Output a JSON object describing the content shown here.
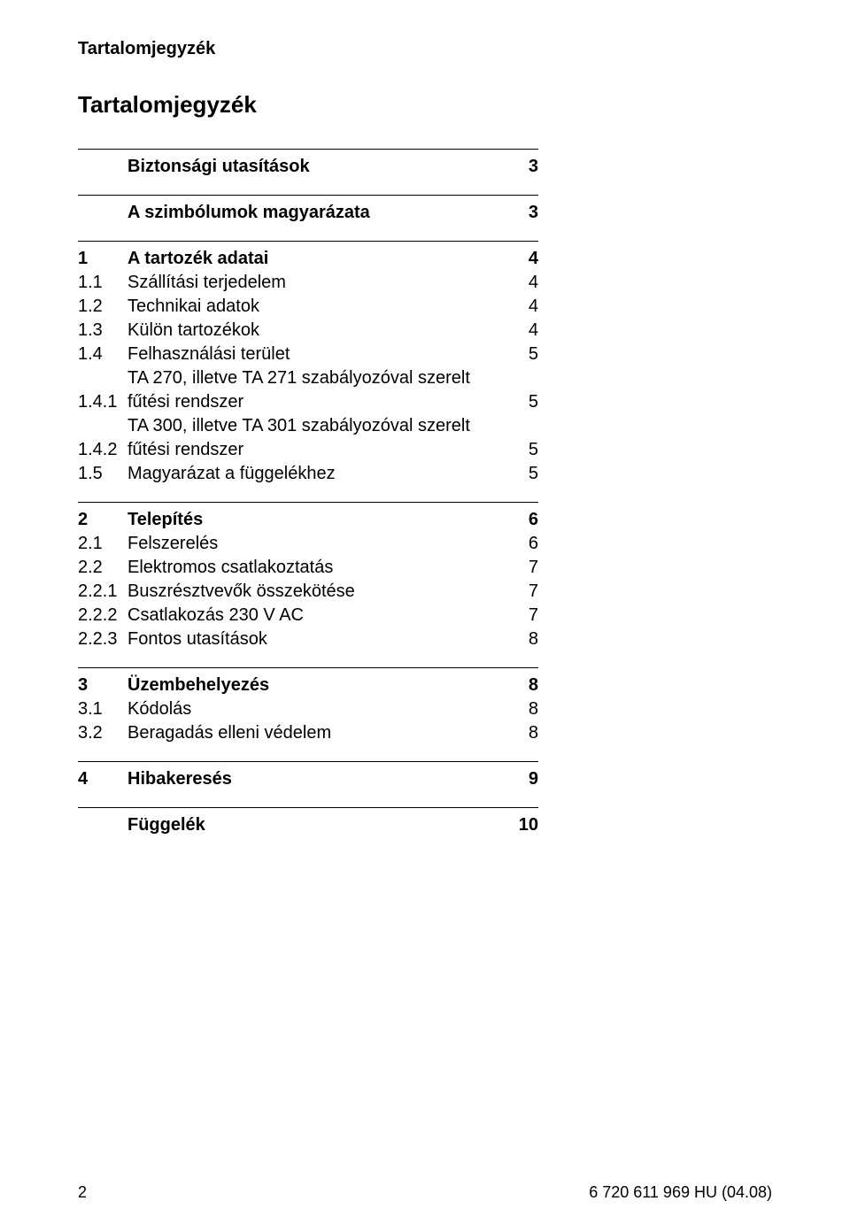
{
  "header": "Tartalomjegyzék",
  "title": "Tartalomjegyzék",
  "sections": [
    {
      "rows": [
        {
          "num": "",
          "label": "Biztonsági utasítások",
          "page": "3",
          "bold": true
        }
      ]
    },
    {
      "rows": [
        {
          "num": "",
          "label": "A szimbólumok magyarázata",
          "page": "3",
          "bold": true
        }
      ]
    },
    {
      "rows": [
        {
          "num": "1",
          "label": "A tartozék adatai",
          "page": "4",
          "bold": true
        },
        {
          "num": "1.1",
          "label": "Szállítási terjedelem",
          "page": "4",
          "bold": false
        },
        {
          "num": "1.2",
          "label": "Technikai adatok",
          "page": "4",
          "bold": false
        },
        {
          "num": "1.3",
          "label": "Külön tartozékok",
          "page": "4",
          "bold": false
        },
        {
          "num": "1.4",
          "label": "Felhasználási terület",
          "page": "5",
          "bold": false
        },
        {
          "num": "1.4.1",
          "label": "TA 270, illetve TA 271 szabályozóval szerelt fűtési rendszer",
          "page": "5",
          "bold": false,
          "multiline": true
        },
        {
          "num": "1.4.2",
          "label": "TA 300, illetve TA 301 szabályozóval szerelt fűtési rendszer",
          "page": "5",
          "bold": false,
          "multiline": true
        },
        {
          "num": "1.5",
          "label": "Magyarázat a függelékhez",
          "page": "5",
          "bold": false
        }
      ]
    },
    {
      "rows": [
        {
          "num": "2",
          "label": "Telepítés",
          "page": "6",
          "bold": true
        },
        {
          "num": "2.1",
          "label": "Felszerelés",
          "page": "6",
          "bold": false
        },
        {
          "num": "2.2",
          "label": "Elektromos csatlakoztatás",
          "page": "7",
          "bold": false
        },
        {
          "num": "2.2.1",
          "label": "Buszrésztvevők összekötése",
          "page": "7",
          "bold": false
        },
        {
          "num": "2.2.2",
          "label": "Csatlakozás 230 V AC",
          "page": "7",
          "bold": false
        },
        {
          "num": "2.2.3",
          "label": "Fontos utasítások",
          "page": "8",
          "bold": false
        }
      ]
    },
    {
      "rows": [
        {
          "num": "3",
          "label": "Üzembehelyezés",
          "page": "8",
          "bold": true
        },
        {
          "num": "3.1",
          "label": "Kódolás",
          "page": "8",
          "bold": false
        },
        {
          "num": "3.2",
          "label": "Beragadás elleni védelem",
          "page": "8",
          "bold": false
        }
      ]
    },
    {
      "rows": [
        {
          "num": "4",
          "label": "Hibakeresés",
          "page": "9",
          "bold": true
        }
      ]
    },
    {
      "rows": [
        {
          "num": "",
          "label": "Függelék",
          "page": "10",
          "bold": true
        }
      ]
    }
  ],
  "footer": {
    "pagenum": "2",
    "docid": "6 720 611 969 HU (04.08)"
  }
}
